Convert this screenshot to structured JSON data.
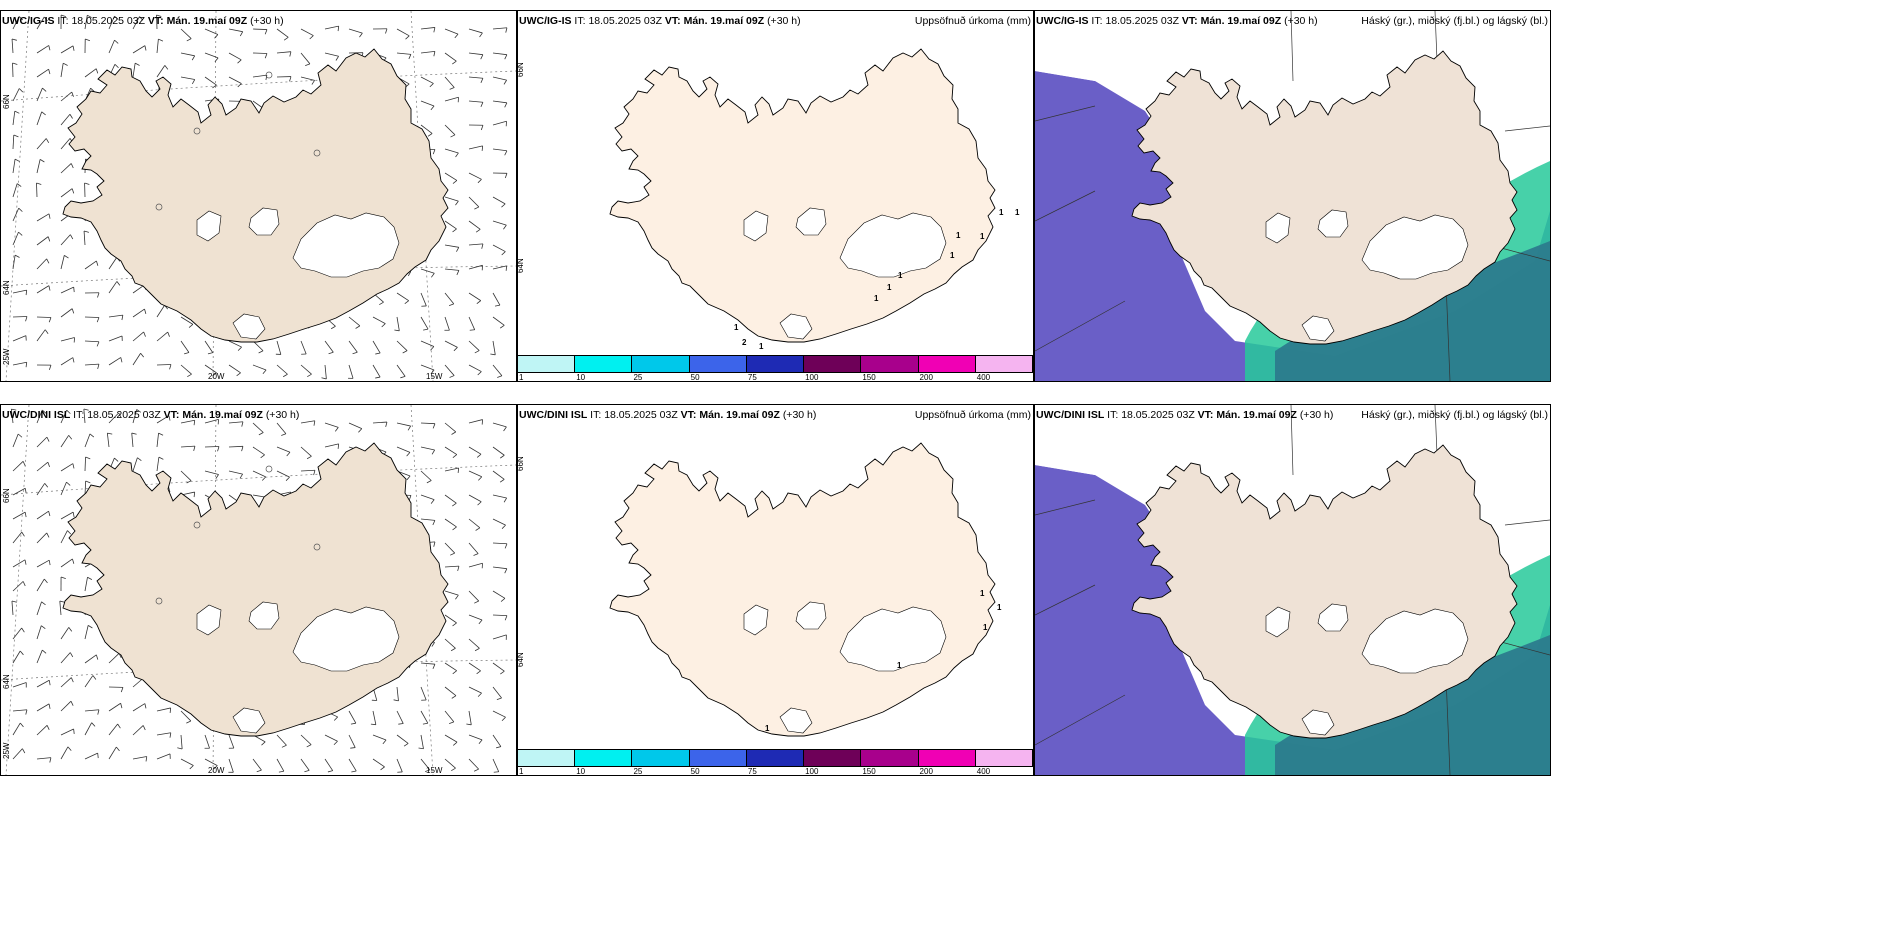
{
  "rows": [
    {
      "model": "UWC/IG-IS",
      "it_label": "IT:",
      "it_value": "18.05.2025 03Z",
      "vt_label": "VT:",
      "vt_value": "Mán. 19.maí 09Z",
      "lead": "(+30 h)",
      "precip_title": "Uppsöfnuð úrkoma (mm)",
      "cloud_title": "Háský (gr.), miðský (fj.bl.) og lágský (bl.)",
      "precip_values": [
        "1",
        "1",
        "1",
        "1",
        "1",
        "1",
        "1",
        "1",
        "1",
        "2",
        "1"
      ]
    },
    {
      "model": "UWC/DINI ISL",
      "it_label": "IT:",
      "it_value": "18.05.2025 03Z",
      "vt_label": "VT:",
      "vt_value": "Mán. 19.maí 09Z",
      "lead": "(+30 h)",
      "precip_title": "Uppsöfnuð úrkoma (mm)",
      "cloud_title": "Háský (gr.), miðský (fj.bl.) og lágský (bl.)",
      "precip_values": [
        "1",
        "1",
        "1",
        "1",
        "1"
      ]
    }
  ],
  "axes": {
    "lon_20w": "20W",
    "lon_15w": "15W",
    "lon_25w": "25W",
    "lat_66n": "66N",
    "lat_64n": "64N"
  },
  "colorbar": {
    "ticks": [
      "1",
      "10",
      "25",
      "50",
      "75",
      "100",
      "150",
      "200",
      "400"
    ],
    "colors": [
      "#bff5f5",
      "#00f0f0",
      "#00c8ea",
      "#3c64ea",
      "#1e2ab4",
      "#6e0058",
      "#a8008c",
      "#f000b4",
      "#f5b4f0"
    ]
  },
  "colors": {
    "land_wind": "#efe2d2",
    "land_precip": "#fdf0e3",
    "land_cloud": "#efe2d6",
    "low_cloud": "#6a5fc7",
    "mid_cloud": "#27c99a",
    "dark_cloud": "#2c7b8d"
  }
}
